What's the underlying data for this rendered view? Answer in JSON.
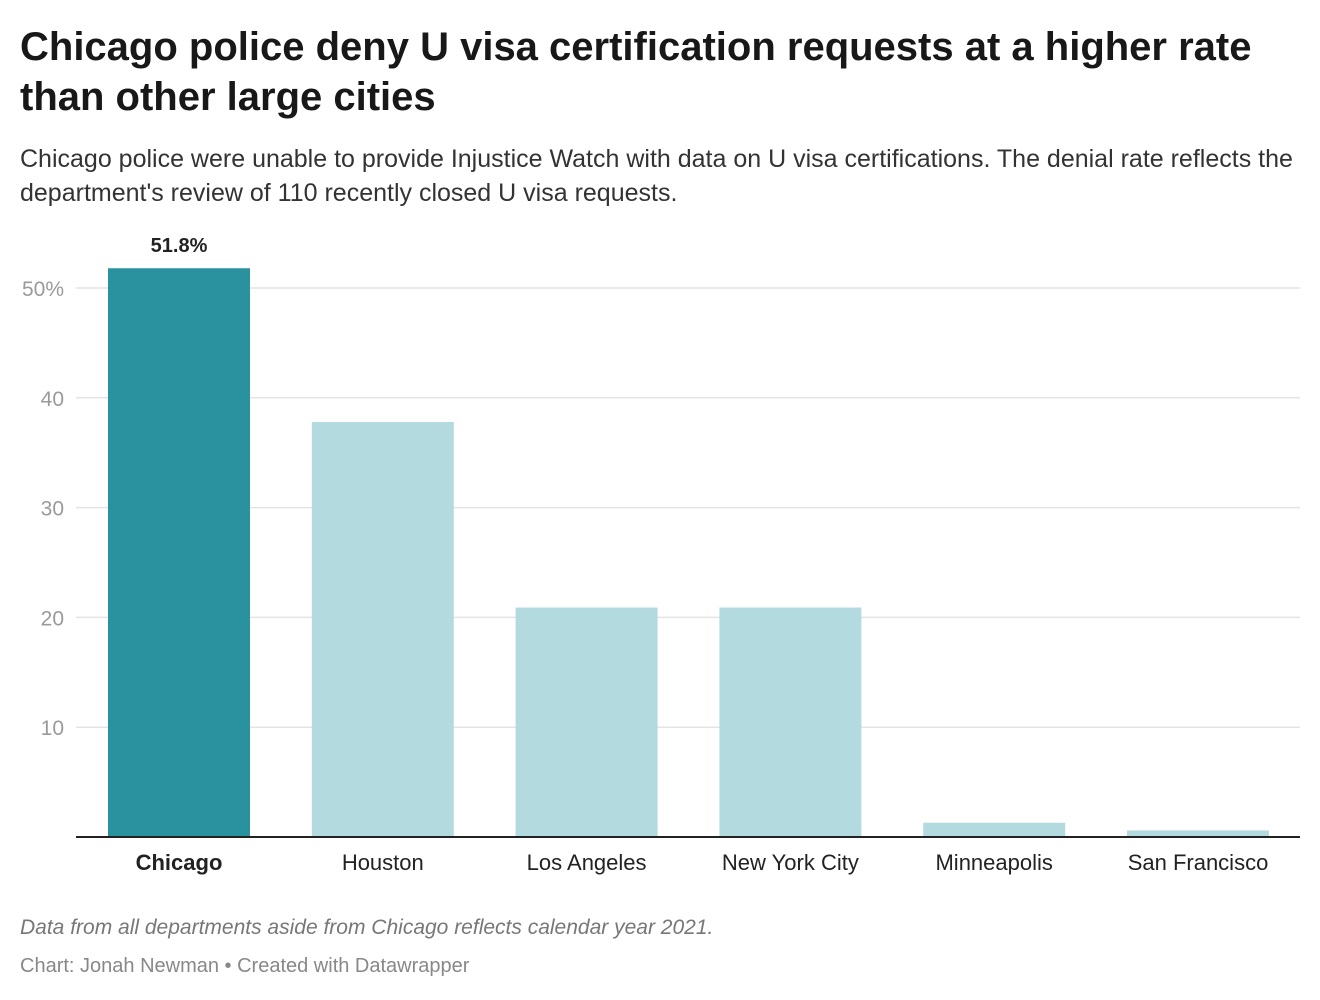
{
  "title": "Chicago police deny U visa certification requests at a higher rate than other large cities",
  "subtitle": "Chicago police were unable to provide Injustice Watch with data on U visa certifications. The denial rate reflects the department's review of 110 recently closed U visa requests.",
  "note": "Data from all departments aside from Chicago reflects calendar year 2021.",
  "credit": "Chart: Jonah Newman • Created with Datawrapper",
  "colors": {
    "highlight": "#2a919f",
    "other": "#b3dadf",
    "grid": "#e4e4e4",
    "axis": "#222222"
  },
  "chart_data": {
    "type": "bar",
    "categories": [
      "Chicago",
      "Houston",
      "Los Angeles",
      "New York City",
      "Minneapolis",
      "San Francisco"
    ],
    "values": [
      51.8,
      37.8,
      20.9,
      20.9,
      1.3,
      0.6
    ],
    "highlight": "Chicago",
    "data_labels": {
      "Chicago": "51.8%"
    },
    "yticks": [
      10,
      20,
      30,
      40,
      50
    ],
    "ytick_labels": [
      "10",
      "20",
      "30",
      "40",
      "50%"
    ],
    "ylim": [
      0,
      52
    ],
    "grid": true,
    "xlabel": "",
    "ylabel": ""
  }
}
